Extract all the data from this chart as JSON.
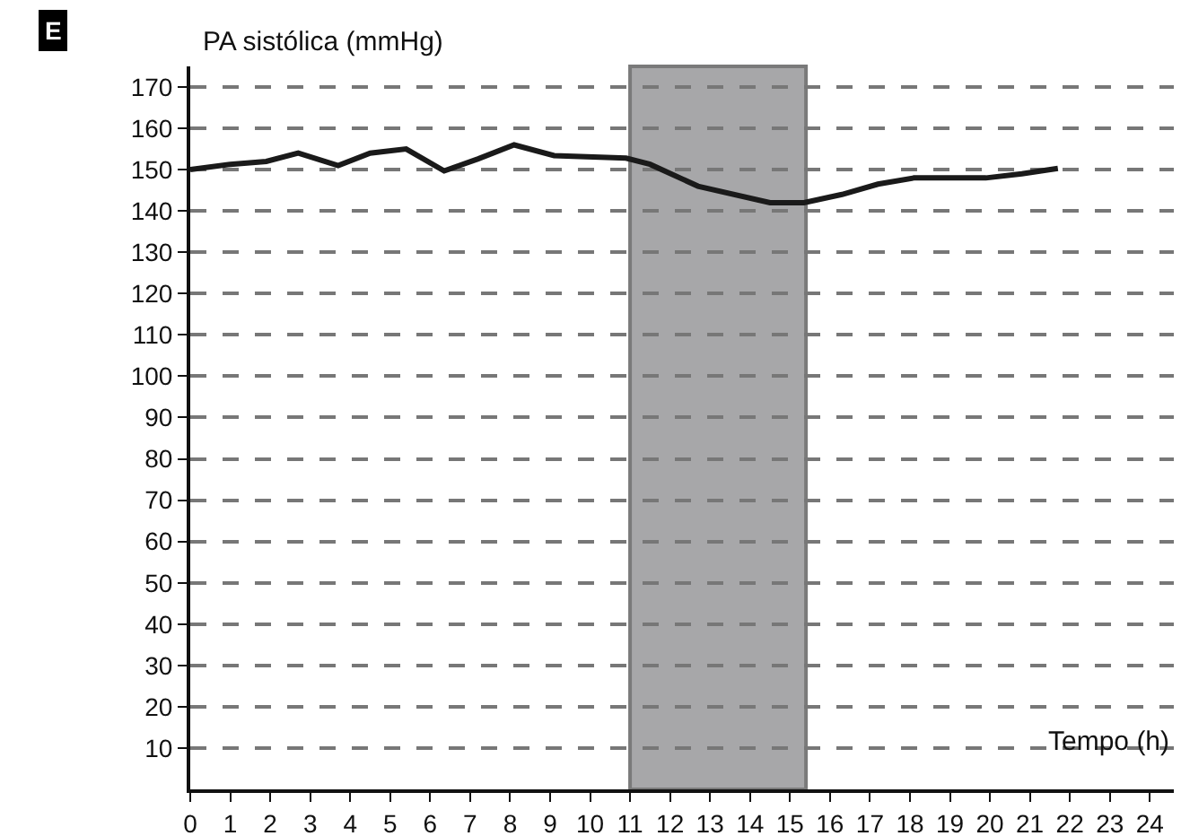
{
  "chart_data": {
    "type": "line",
    "xlabel": "Tempo (h)",
    "ylabel": "PA sistólica (mmHg)",
    "annotations": [
      "E"
    ],
    "x": [
      0,
      1,
      1.9,
      2.7,
      3.7,
      4.5,
      5.4,
      6.35,
      7.2,
      8.1,
      9.1,
      10.9,
      11.5,
      12.7,
      14.5,
      15.35,
      16.3,
      17.2,
      18.1,
      19.9,
      20.8,
      21.7
    ],
    "series": [
      {
        "color": "#1a1a1a",
        "values": [
          150,
          151.3,
          152,
          154,
          151,
          154,
          155,
          149.7,
          152.6,
          156,
          153.4,
          152.8,
          151.3,
          146,
          142,
          142,
          144,
          146.5,
          148,
          148,
          149,
          150.3
        ]
      }
    ],
    "bands": [
      {
        "axis": "x",
        "from": 11,
        "to": 15.4,
        "color": "#a7a7a9"
      }
    ],
    "xlim": [
      0,
      24.6
    ],
    "ylim": [
      0,
      175
    ],
    "xticks": [
      0,
      1,
      2,
      3,
      4,
      5,
      6,
      7,
      8,
      9,
      10,
      11,
      12,
      13,
      14,
      15,
      16,
      17,
      18,
      19,
      20,
      21,
      22,
      23,
      24
    ],
    "yticks": [
      10,
      20,
      30,
      40,
      50,
      60,
      70,
      80,
      90,
      100,
      110,
      120,
      130,
      140,
      150,
      160,
      170
    ],
    "grid": "y",
    "marker": "none",
    "line_style": "solid"
  }
}
